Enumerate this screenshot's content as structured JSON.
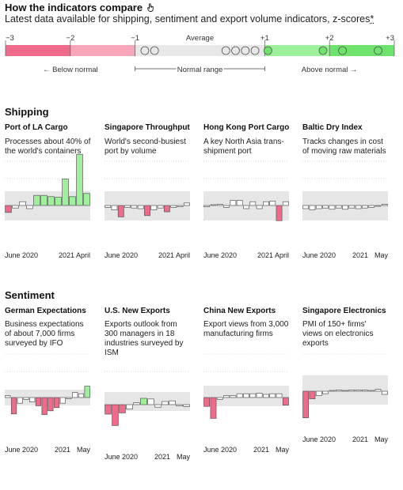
{
  "header": {
    "title": "How the indicators compare",
    "subtitle": "Latest data available for shipping, sentiment and export volume indicators, z-scores",
    "subtitle_asterisk": "*"
  },
  "colors": {
    "below": "#f06a8a",
    "below_light": "#f7a5b8",
    "neutral_band": "#e8e8e8",
    "above_light": "#9ff09a",
    "above": "#6ee36b",
    "bar_neutral": "#ffffff"
  },
  "scale": {
    "ticks": [
      "−3",
      "−2",
      "−1",
      "Average",
      "+1",
      "+2",
      "+3"
    ],
    "below_label": "← Below normal",
    "normal_label": "Normal range",
    "above_label": "Above normal →",
    "dots": [
      -0.85,
      -0.7,
      0.4,
      0.55,
      0.7,
      0.85,
      1.05,
      1.9,
      2.2,
      2.75
    ]
  },
  "sections": [
    {
      "title": "Shipping",
      "panels": [
        {
          "title": "Port of LA Cargo",
          "desc": "Processes about 40% of the world's containers",
          "x_labels": [
            "June 2020",
            "2021 April"
          ]
        },
        {
          "title": "Singapore Throughput",
          "desc": "World's second-busiest port by volume",
          "x_labels": [
            "June 2020",
            "2021 April"
          ]
        },
        {
          "title": "Hong Kong Port Cargo",
          "desc": "A key North Asia trans-shipment port",
          "x_labels": [
            "June 2020",
            "2021 April"
          ]
        },
        {
          "title": "Baltic Dry Index",
          "desc": "Tracks changes in cost of moving raw materials",
          "x_labels": [
            "June 2020",
            "2021",
            "May"
          ]
        }
      ]
    },
    {
      "title": "Sentiment",
      "panels": [
        {
          "title": "German Expectations",
          "desc": "Business expectations of about 7,000 firms surveyed by IFO",
          "x_labels": [
            "June 2020",
            "2021",
            "May"
          ]
        },
        {
          "title": "U.S. New Exports",
          "desc": "Exports outlook from 300 managers in 18 industries surveyed by ISM",
          "x_labels": [
            "June 2020",
            "2021",
            "May"
          ]
        },
        {
          "title": "China New Exports",
          "desc": "Export views from 3,000 manufacturing firms",
          "x_labels": [
            "June 2020",
            "2021",
            "May"
          ]
        },
        {
          "title": "Singapore Electronics",
          "desc": "PMI of 150+ firms' views on electronics exports",
          "x_labels": [
            "June 2020",
            "2021",
            "May"
          ]
        }
      ]
    }
  ],
  "chart_data": [
    {
      "type": "bar",
      "title": "Port of LA Cargo",
      "ylim": [
        -2,
        9
      ],
      "values": [
        -1.1,
        -0.4,
        0.6,
        -0.5,
        1.6,
        1.6,
        1.4,
        1.3,
        4.2,
        1.4,
        8.1,
        1.9
      ]
    },
    {
      "type": "bar",
      "title": "Singapore Throughput",
      "values": [
        -0.3,
        -0.7,
        -1.8,
        -0.3,
        -0.4,
        -0.5,
        -1.6,
        -0.7,
        -0.4,
        -1.0,
        -0.3,
        -0.2,
        0.4
      ]
    },
    {
      "type": "bar",
      "title": "Hong Kong Port Cargo",
      "values": [
        -0.2,
        0.1,
        0.2,
        -0.3,
        0.8,
        0.8,
        -0.5,
        0.6,
        -0.5,
        0.6,
        0.7,
        -2.4,
        0.6
      ]
    },
    {
      "type": "bar",
      "title": "Baltic Dry Index",
      "values": [
        -0.5,
        -0.7,
        -0.5,
        -0.4,
        -0.6,
        -0.4,
        -0.6,
        -0.4,
        -0.5,
        -0.4,
        -0.3,
        -0.1,
        0.2
      ]
    },
    {
      "type": "bar",
      "title": "German Expectations",
      "values": [
        0.3,
        -2.6,
        -0.9,
        -0.3,
        -0.7,
        -1.3,
        -2.7,
        -2.1,
        -1.6,
        -0.9,
        -0.2,
        0.8,
        0.6,
        1.8
      ]
    },
    {
      "type": "bar",
      "title": "U.S. New Exports",
      "values": [
        -1.5,
        -3.3,
        -1.3,
        -0.7,
        0.3,
        1.0,
        0.9,
        -0.4,
        0.5,
        0.6,
        -0.2,
        -0.3
      ]
    },
    {
      "type": "bar",
      "title": "China New Exports",
      "values": [
        -1.4,
        -3.3,
        -0.3,
        0.3,
        0.3,
        0.6,
        0.6,
        0.6,
        0.7,
        0.5,
        0.6,
        0.6,
        -1.2
      ]
    },
    {
      "type": "bar",
      "title": "Singapore Electronics",
      "values": [
        -4.2,
        -1.2,
        -0.7,
        -0.4,
        0.1,
        0.2,
        0.1,
        0.2,
        0.2,
        0.2,
        0.1,
        0.3,
        -0.5
      ]
    }
  ]
}
